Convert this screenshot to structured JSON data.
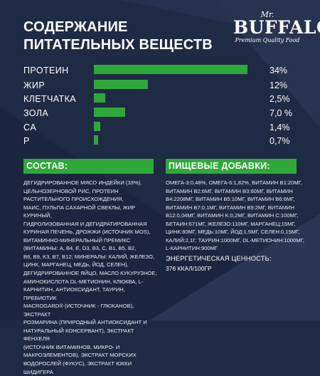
{
  "title_line1": "СОДЕРЖАНИЕ",
  "title_line2": "ПИТАТЕЛЬНЫХ ВЕЩЕСТВ",
  "logo": {
    "top": "Mr.",
    "main": "BUFFALO",
    "tagline": "Premium Quality Food"
  },
  "colors": {
    "background": "#1f2a44",
    "accent_green": "#2fa83a",
    "text": "#ffffff"
  },
  "nutrients": [
    {
      "label": "ПРОТЕИН",
      "value": "34%",
      "percent": 34
    },
    {
      "label": "ЖИР",
      "value": "12%",
      "percent": 12
    },
    {
      "label": "КЛЕТЧАТКА",
      "value": "2,5%",
      "percent": 2.5
    },
    {
      "label": "ЗОЛА",
      "value": "7,0 %",
      "percent": 7.0
    },
    {
      "label": "CA",
      "value": "1,4%",
      "percent": 1.4
    },
    {
      "label": "P",
      "value": "0,7%",
      "percent": 0.7
    }
  ],
  "composition": {
    "header": "СОСТАВ:",
    "lines": [
      "ДЕГИДРИРОВАННОЕ МЯСО ИНДЕЙКИ (33%),",
      "ЦЕЛЬНОЗЕРНОВОЙ РИС, ПРОТЕИН",
      "РАСТИТЕЛЬНОГО ПРОИСХОЖДЕНИЯ,",
      "МАИС, ПУЛЬПА САХАРНОЙ СВЕКЛЫ, ЖИР КУРИНЫЙ,",
      "ГИДРОЛИЗОВАННАЯ И ДЕГИДРАТИРОВАННАЯ",
      "КУРИНАЯ ПЕЧЕНЬ, ДРОЖЖИ (ИСТОЧНИК MOS),",
      "ВИТАМИННО-МИНЕРАЛЬНЫЙ ПРЕМИКС",
      "(ВИТАМИНЫ: A, B4, E, D3, B3, C, B1, B5, B2,",
      "B6, B9, K3, B7, B12; МИНЕРАЛЫ: КАЛИЙ, ЖЕЛЕЗО,",
      "ЦИНК, МАРГАНЕЦ, МЕДЬ, ЙОД, СЕЛЕН),",
      "ДЕГИДРИРОВАННОЕ ЯЙЦО, МАСЛО КУКУРУЗНОЕ,",
      "АМИНОКИСЛОТА DL-МЕТИОНИН, КЛЮКВА, L-",
      "КАРНИТИН, АНТИОКСИДАНТ, ТАУРИН, ПРЕБИОТИК",
      "MACROGARD® (ИСТОЧНИК - ГЛЮКАНОВ), ЭКСТРАКТ",
      "РОЗМАРИНА (ПРИРОДНЫЙ АНТИОКСИДАНТ И",
      "НАТУРАЛЬНЫЙ КОНСЕРВАНТ), ЭКСТРАКТ ФЕНХЕЛЯ",
      "(ИСТОЧНИК ВИТАМИНОВ, МИКРО- И",
      "МАКРОЭЛЕМЕНТОВ), ЭКСТРАКТ МОРСКИХ",
      "ВОДОРОСЛЕЙ (ФУКУС), ЭКСТРАКТ ЮККИ ШИДИГЕРА"
    ]
  },
  "additives": {
    "header": "ПИЩЕВЫЕ ДОБАВКИ:",
    "lines": [
      "ОМЕГА-3:0,48%, ОМЕГА-6:1,82%, ВИТАМИН B1:20МГ,",
      "ВИТАМИН B2:6МГ, ВИТАМИН B3:60МГ, ВИТАМИН",
      "B4:2208МГ, ВИТАМИН B5:10МГ, ВИТАМИН B6:6МГ,",
      "ВИТАМИН B7:0,1МГ, ВИТАМИН B9:2МГ, ВИТАМИН",
      "B12:0,04МГ, ВИТАМИН K:0,2МГ, ВИТАМИН C:100МГ,",
      "БЕТАИН:671МГ, ЖЕЛЕЗО:110МГ, МАРГАНЕЦ:15МГ,",
      "ЦИНК:80МГ, МЕДЬ:10МГ, ЙОД:1,5МГ, СЕЛЕН:0,15МГ,",
      "КАЛИЙ:2,1Г, ТАУРИН:1000МГ, DL-МЕТИОНИН:1000МГ,",
      "L-КАРНИТИН:900МГ"
    ],
    "energy_label": "ЭНЕРГЕТИЧЕСКАЯ ЦЕННОСТЬ:",
    "energy_value": "376 ККАЛ/100ГР"
  }
}
